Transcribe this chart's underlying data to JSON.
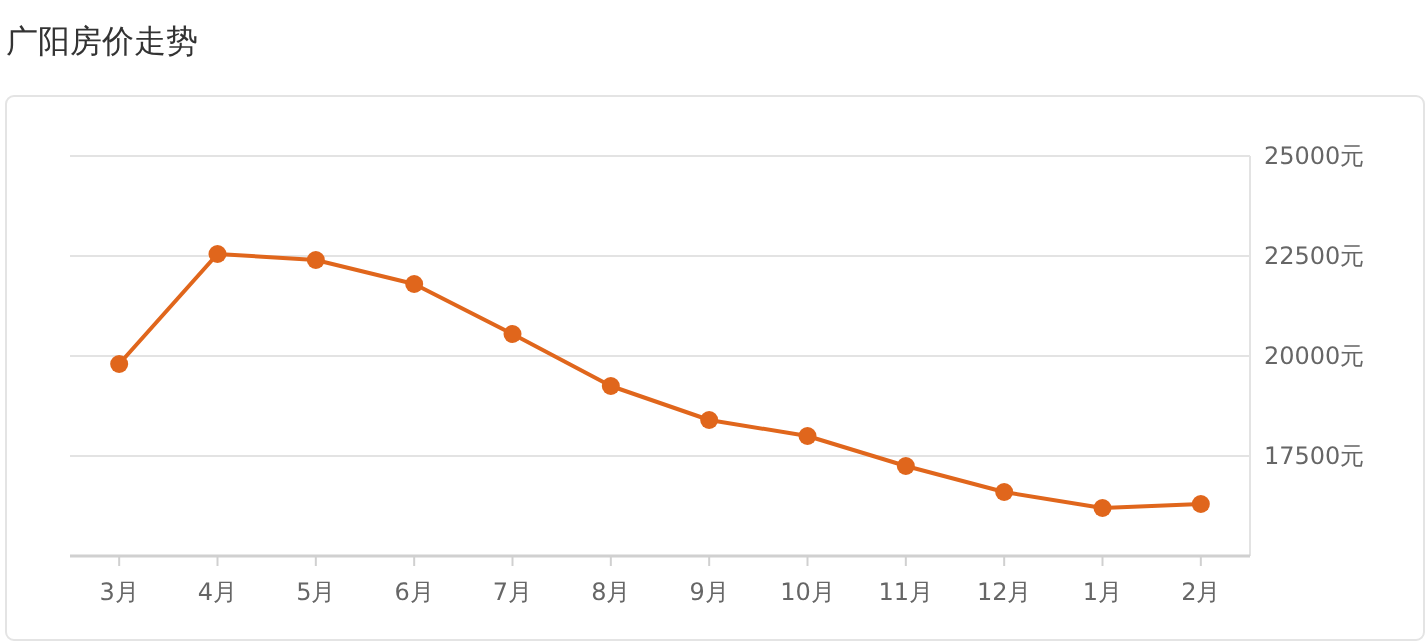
{
  "chart_data": {
    "type": "line",
    "title": "广阳房价走势",
    "categories": [
      "3月",
      "4月",
      "5月",
      "6月",
      "7月",
      "8月",
      "9月",
      "10月",
      "11月",
      "12月",
      "1月",
      "2月"
    ],
    "series": [
      {
        "color": "#e0661c",
        "values": [
          19800,
          22550,
          22400,
          21800,
          20550,
          19250,
          18400,
          18000,
          17250,
          16600,
          16200,
          16300
        ]
      }
    ],
    "ylim": [
      15000,
      25000
    ],
    "yticks": [
      {
        "value": 17500,
        "label": "17500元"
      },
      {
        "value": 20000,
        "label": "20000元"
      },
      {
        "value": 22500,
        "label": "22500元"
      },
      {
        "value": 25000,
        "label": "25000元"
      }
    ],
    "grid": "y",
    "marker": "circle",
    "line_style": "solid"
  }
}
